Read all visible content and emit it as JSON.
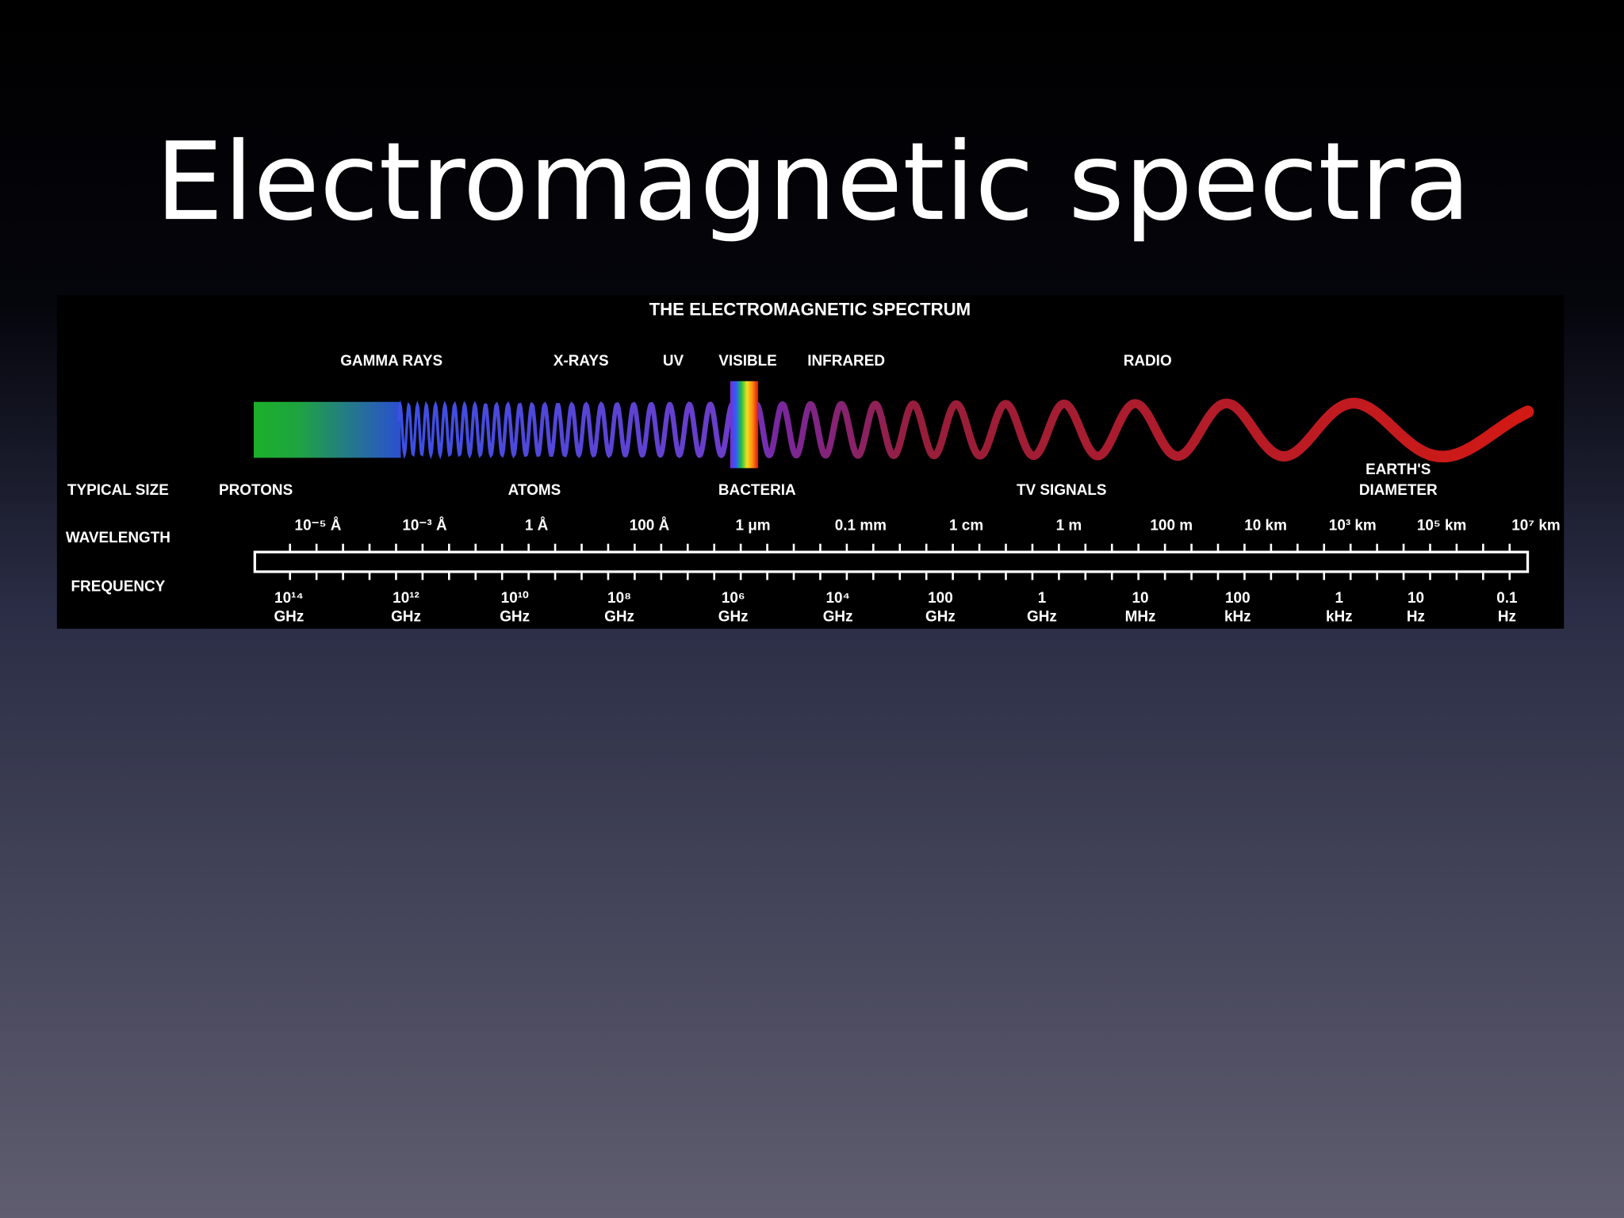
{
  "slide": {
    "title": "Electromagnetic spectra"
  },
  "diagram": {
    "title": "THE ELECTROMAGNETIC SPECTRUM",
    "bands": [
      "GAMMA RAYS",
      "X-RAYS",
      "UV",
      "VISIBLE",
      "INFRARED",
      "RADIO"
    ],
    "row_labels": [
      "TYPICAL SIZE",
      "WAVELENGTH",
      "FREQUENCY"
    ],
    "typical_sizes": [
      [
        "PROTONS"
      ],
      [
        "ATOMS"
      ],
      [
        "BACTERIA"
      ],
      [
        "TV SIGNALS"
      ],
      [
        "EARTH'S",
        "DIAMETER"
      ]
    ],
    "wavelengths": [
      "10⁻⁵ Å",
      "10⁻³ Å",
      "1 Å",
      "100 Å",
      "1 μm",
      "0.1 mm",
      "1 cm",
      "1 m",
      "100 m",
      "10 km",
      "10³ km",
      "10⁵ km",
      "10⁷ km"
    ],
    "frequencies": [
      [
        "10¹⁴",
        "GHz"
      ],
      [
        "10¹²",
        "GHz"
      ],
      [
        "10¹⁰",
        "GHz"
      ],
      [
        "10⁸",
        "GHz"
      ],
      [
        "10⁶",
        "GHz"
      ],
      [
        "10⁴",
        "GHz"
      ],
      [
        "100",
        "GHz"
      ],
      [
        "1",
        "GHz"
      ],
      [
        "10",
        "MHz"
      ],
      [
        "100",
        "kHz"
      ],
      [
        "1",
        "kHz"
      ],
      [
        "10",
        "Hz"
      ],
      [
        "0.1",
        "Hz"
      ]
    ]
  }
}
